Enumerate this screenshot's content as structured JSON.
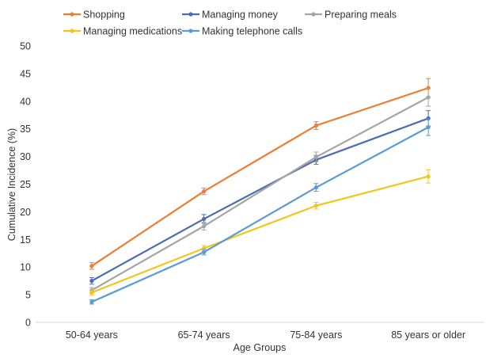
{
  "chart_data": {
    "type": "line",
    "title": "",
    "xlabel": "Age Groups",
    "ylabel": "Cumulative Incidence (%)",
    "ylim": [
      0,
      50
    ],
    "yticks": [
      "0",
      "5",
      "10",
      "15",
      "20",
      "25",
      "30",
      "35",
      "40",
      "45",
      "50"
    ],
    "categories": [
      "50-64 years",
      "65-74 years",
      "75-84 years",
      "85 years or older"
    ],
    "grid": false,
    "legend_position": "top",
    "error_bars": true,
    "series": [
      {
        "name": "Shopping",
        "color": "#ED7D31",
        "values": [
          10.2,
          23.7,
          35.6,
          42.4
        ],
        "errors": [
          0.6,
          0.6,
          0.7,
          1.7
        ]
      },
      {
        "name": "Managing money",
        "color": "#4A6DB0",
        "values": [
          7.5,
          18.7,
          29.4,
          36.9
        ],
        "errors": [
          0.6,
          0.8,
          0.8,
          1.4
        ]
      },
      {
        "name": "Preparing meals",
        "color": "#A5A5A5",
        "values": [
          5.8,
          17.4,
          29.9,
          40.7
        ],
        "errors": [
          0.5,
          0.7,
          0.9,
          1.6
        ]
      },
      {
        "name": "Managing medications",
        "color": "#F5C518",
        "values": [
          5.4,
          13.4,
          21.1,
          26.4
        ],
        "errors": [
          0.5,
          0.5,
          0.6,
          1.2
        ]
      },
      {
        "name": "Making telephone calls",
        "color": "#5B9BD5",
        "values": [
          3.7,
          12.7,
          24.4,
          35.3
        ],
        "errors": [
          0.4,
          0.5,
          0.7,
          1.5
        ]
      }
    ]
  }
}
